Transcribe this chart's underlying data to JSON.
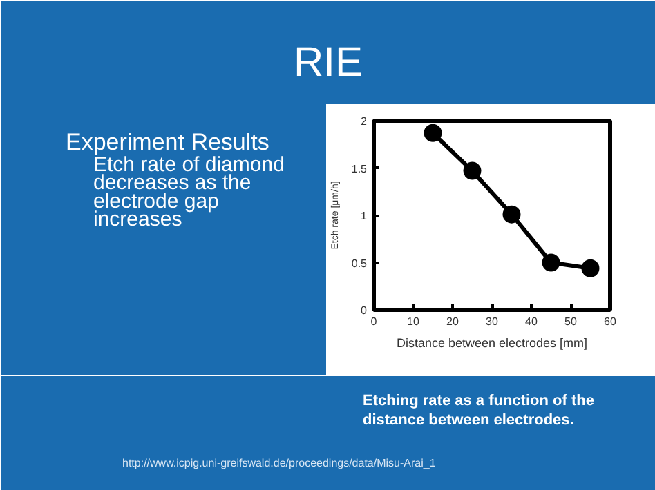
{
  "chart_data": {
    "type": "line",
    "title": "RIE",
    "xlabel": "Distance between electrodes [mm]",
    "ylabel": "Etch rate [μm/h]",
    "x": [
      15,
      25,
      35,
      45,
      55
    ],
    "series": [
      {
        "color": "#000000",
        "values": [
          1.87,
          1.47,
          1.01,
          0.5,
          0.44
        ]
      }
    ],
    "xlim": [
      0,
      60
    ],
    "xticks": [
      0,
      10,
      20,
      30,
      40,
      50,
      60
    ],
    "ylim": [
      0,
      2
    ],
    "yticks": [
      0,
      0.5,
      1,
      1.5,
      2
    ],
    "marker": "circle",
    "line_style": "solid",
    "grid": false,
    "annotations": [
      "Experiment Results",
      "Etch rate of diamond decreases as the electrode gap increases",
      "Etching rate as a function of the distance between electrodes.",
      "http://www.icpig.uni-greifswald.de/proceedings/data/Misu-Arai_1"
    ]
  }
}
